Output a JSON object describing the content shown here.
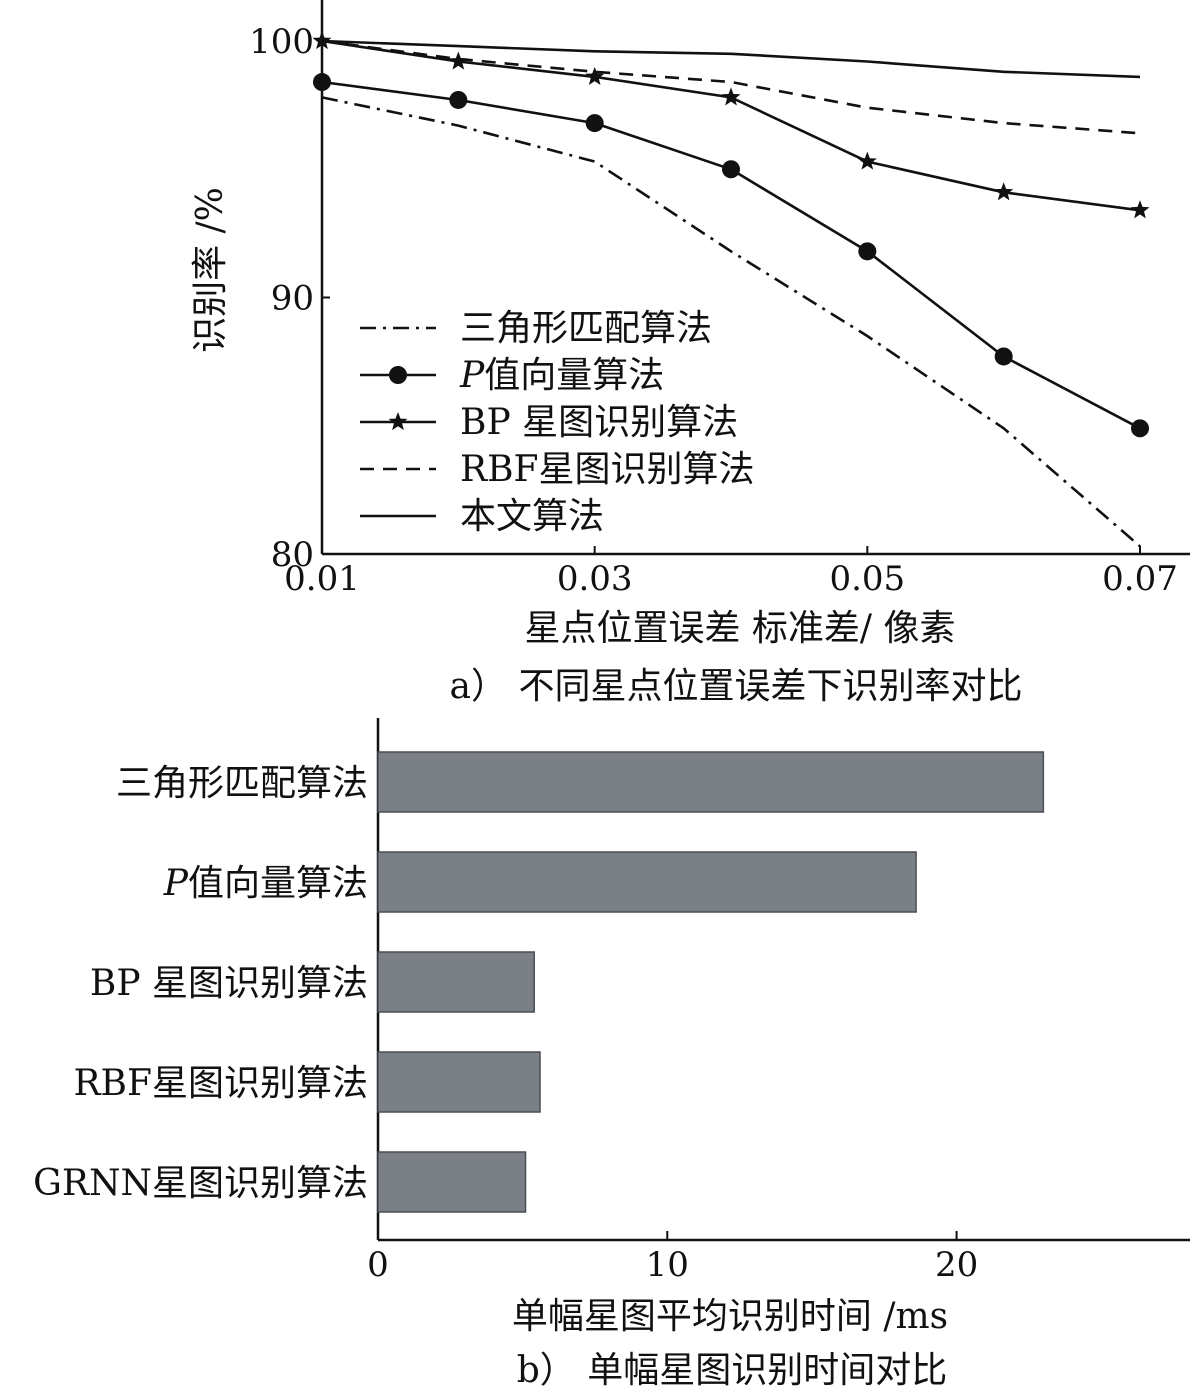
{
  "chart_data": [
    {
      "type": "line",
      "caption": "a） 不同星点位置误差下识别率对比",
      "xlabel": "星点位置误差 标准差/ 像素",
      "ylabel": "识别率 /%",
      "xlim": [
        0.01,
        0.07
      ],
      "ylim": [
        80,
        100
      ],
      "xticks": [
        "0.01",
        "0.03",
        "0.05",
        "0.07"
      ],
      "yticks": [
        "80",
        "90",
        "100"
      ],
      "legend_position": "bottom-left",
      "series": [
        {
          "name": "三角形匹配算法",
          "style": "dashdot",
          "marker": "none",
          "x": [
            0.01,
            0.02,
            0.03,
            0.04,
            0.05,
            0.06,
            0.07
          ],
          "y": [
            97.8,
            96.7,
            95.3,
            91.8,
            88.5,
            84.9,
            80.3
          ]
        },
        {
          "name_prefix": "P",
          "name": "值向量算法",
          "style": "solid",
          "marker": "circle",
          "x": [
            0.01,
            0.02,
            0.03,
            0.04,
            0.05,
            0.06,
            0.07
          ],
          "y": [
            98.4,
            97.7,
            96.8,
            95.0,
            91.8,
            87.7,
            84.9
          ]
        },
        {
          "name": "BP 星图识别算法",
          "style": "solid",
          "marker": "star",
          "x": [
            0.01,
            0.02,
            0.03,
            0.04,
            0.05,
            0.06,
            0.07
          ],
          "y": [
            100.0,
            99.2,
            98.6,
            97.8,
            95.3,
            94.1,
            93.4
          ]
        },
        {
          "name": "RBF星图识别算法",
          "style": "dashed",
          "marker": "none",
          "x": [
            0.01,
            0.02,
            0.03,
            0.04,
            0.05,
            0.06,
            0.07
          ],
          "y": [
            100.0,
            99.3,
            98.8,
            98.4,
            97.4,
            96.8,
            96.4
          ]
        },
        {
          "name": "本文算法",
          "style": "solid",
          "marker": "none",
          "x": [
            0.01,
            0.02,
            0.03,
            0.04,
            0.05,
            0.06,
            0.07
          ],
          "y": [
            100.0,
            99.8,
            99.6,
            99.5,
            99.2,
            98.8,
            98.6
          ]
        }
      ]
    },
    {
      "type": "bar",
      "orientation": "horizontal",
      "caption": "b） 单幅星图识别时间对比",
      "xlabel": "单幅星图平均识别时间 /ms",
      "xlim": [
        0,
        28
      ],
      "xticks": [
        "0",
        "10",
        "20"
      ],
      "categories": [
        {
          "prefix": "",
          "label": "三角形匹配算法"
        },
        {
          "prefix": "P",
          "label": "值向量算法"
        },
        {
          "prefix": "",
          "label": "BP 星图识别算法"
        },
        {
          "prefix": "",
          "label": "RBF星图识别算法"
        },
        {
          "prefix": "",
          "label": "GRNN星图识别算法"
        }
      ],
      "values": [
        23.0,
        18.6,
        5.4,
        5.6,
        5.1
      ],
      "bar_color": "#7b8087"
    }
  ]
}
